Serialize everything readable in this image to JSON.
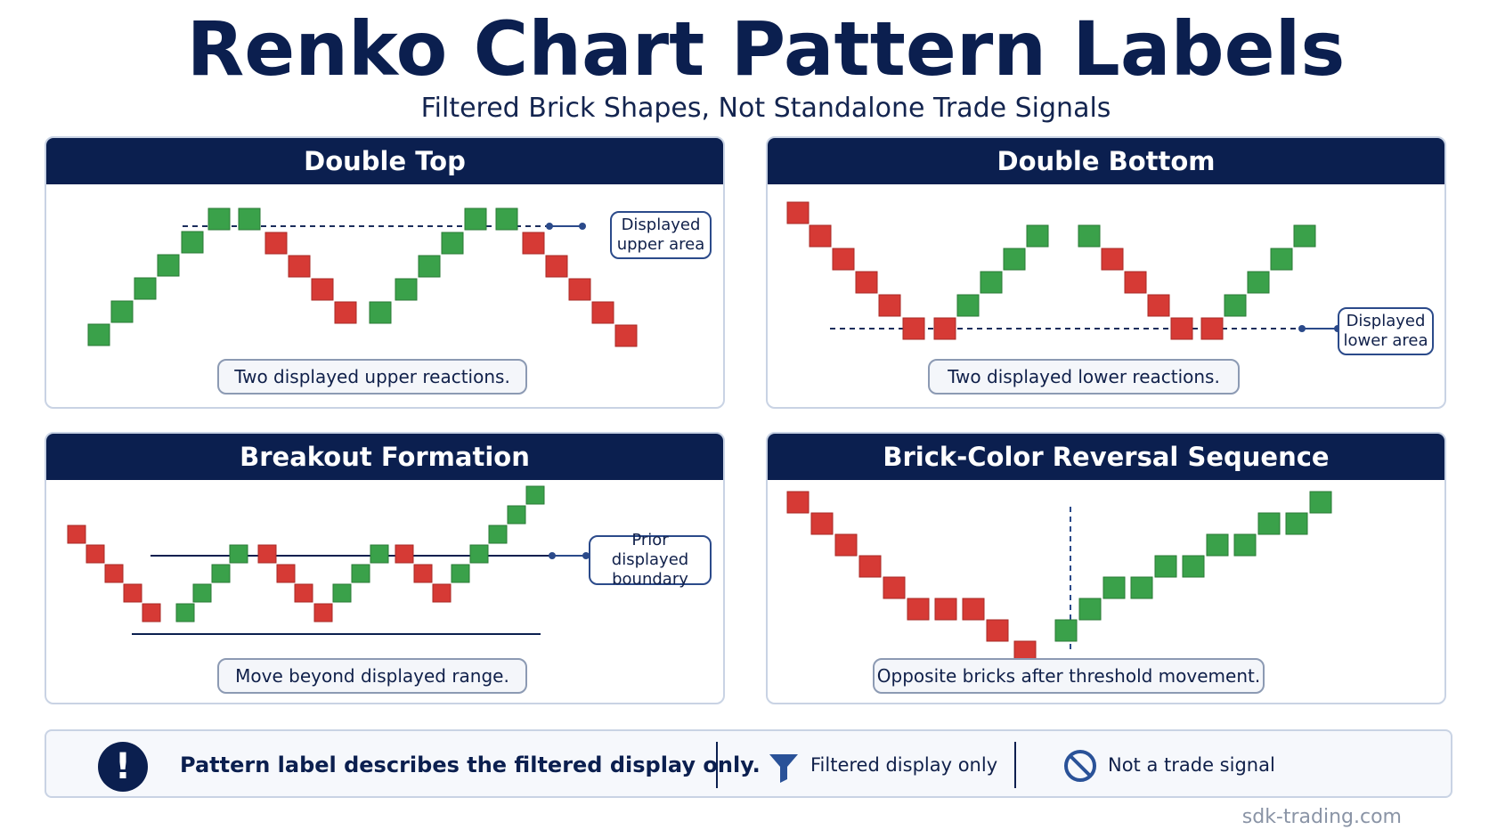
{
  "header": {
    "title": "Renko Chart Pattern Labels",
    "subtitle": "Filtered Brick Shapes, Not Standalone Trade Signals"
  },
  "colors": {
    "navy": "#0b1f4f",
    "up_brick": "#3aa14a",
    "down_brick": "#d63a35"
  },
  "panels": [
    {
      "title": "Double Top",
      "caption": "Two displayed upper reactions.",
      "callout": "Displayed upper area"
    },
    {
      "title": "Double Bottom",
      "caption": "Two displayed lower reactions.",
      "callout": "Displayed lower area"
    },
    {
      "title": "Breakout Formation",
      "caption": "Move beyond displayed range.",
      "callout": "Prior displayed boundary"
    },
    {
      "title": "Brick-Color Reversal Sequence",
      "caption": "Opposite bricks after threshold movement.",
      "callout": ""
    }
  ],
  "footer": {
    "main_note": "Pattern label describes the filtered display only.",
    "item1": {
      "icon": "filter-icon",
      "label": "Filtered display only"
    },
    "item2": {
      "icon": "prohibited-icon",
      "label": "Not a trade signal"
    }
  },
  "watermark": "sdk-trading.com"
}
